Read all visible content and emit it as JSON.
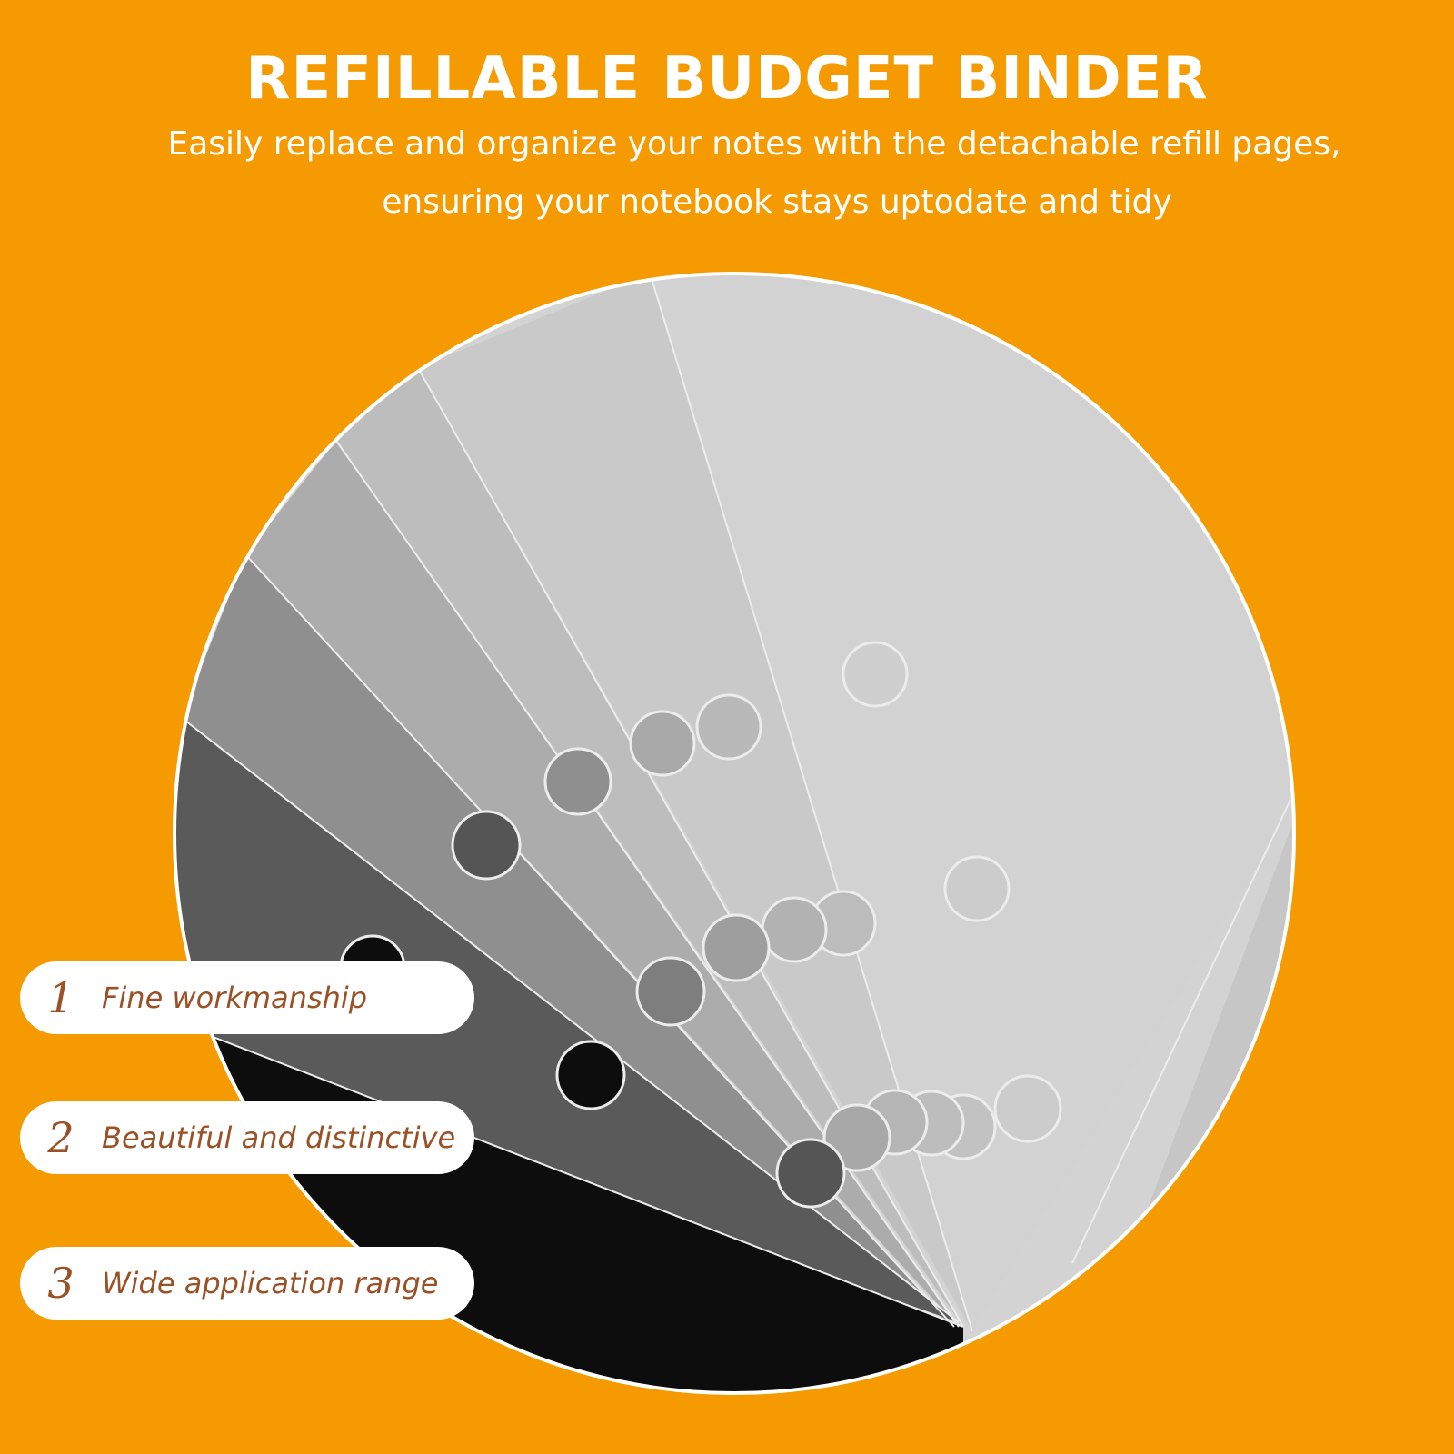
{
  "header": {
    "title": "REFILLABLE BUDGET BINDER",
    "subtitle_line1": "Easily replace and organize your notes with the detachable refill pages,",
    "subtitle_line2": "ensuring your notebook stays uptodate and tidy"
  },
  "features": [
    {
      "number": "1",
      "label": "Fine workmanship"
    },
    {
      "number": "2",
      "label": "Beautiful and distinctive"
    },
    {
      "number": "3",
      "label": "Wide application range"
    }
  ],
  "colors": {
    "background": "#F59A00",
    "text_accent": "#9a5126",
    "pill_background": "#ffffff"
  }
}
